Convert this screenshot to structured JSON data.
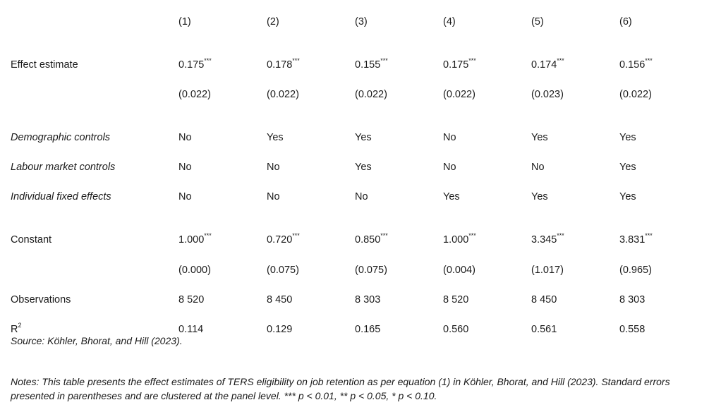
{
  "columns": [
    "(1)",
    "(2)",
    "(3)",
    "(4)",
    "(5)",
    "(6)"
  ],
  "rows": [
    {
      "label": "Effect estimate",
      "italic": false,
      "values": [
        "0.175***",
        "0.178***",
        "0.155***",
        "0.175***",
        "0.174***",
        "0.156***"
      ]
    },
    {
      "label": "",
      "italic": false,
      "values": [
        "(0.022)",
        "(0.022)",
        "(0.022)",
        "(0.022)",
        "(0.023)",
        "(0.022)"
      ]
    },
    {
      "label": "Demographic controls",
      "italic": true,
      "values": [
        "No",
        "Yes",
        "Yes",
        "No",
        "Yes",
        "Yes"
      ]
    },
    {
      "label": "Labour market controls",
      "italic": true,
      "values": [
        "No",
        "No",
        "Yes",
        "No",
        "No",
        "Yes"
      ]
    },
    {
      "label": "Individual fixed effects",
      "italic": true,
      "values": [
        "No",
        "No",
        "No",
        "Yes",
        "Yes",
        "Yes"
      ]
    },
    {
      "label": "Constant",
      "italic": false,
      "values": [
        "1.000***",
        "0.720***",
        "0.850***",
        "1.000***",
        "3.345***",
        "3.831***"
      ]
    },
    {
      "label": "",
      "italic": false,
      "values": [
        "(0.000)",
        "(0.075)",
        "(0.075)",
        "(0.004)",
        "(1.017)",
        "(0.965)"
      ]
    },
    {
      "label": "Observations",
      "italic": false,
      "values": [
        "8 520",
        "8 450",
        "8 303",
        "8 520",
        "8 450",
        "8 303"
      ]
    },
    {
      "label_base": "R",
      "label_sup": "2",
      "italic": false,
      "values": [
        "0.114",
        "0.129",
        "0.165",
        "0.560",
        "0.561",
        "0.558"
      ]
    }
  ],
  "source": "Source: Köhler, Bhorat, and Hill (2023).",
  "notes": "Notes: This table presents the effect estimates of TERS eligibility on job retention as per equation (1) in Köhler, Bhorat, and Hill (2023). Standard errors presented in parentheses and are clustered at the panel level. *** p < 0.01, ** p < 0.05, * p < 0.10."
}
